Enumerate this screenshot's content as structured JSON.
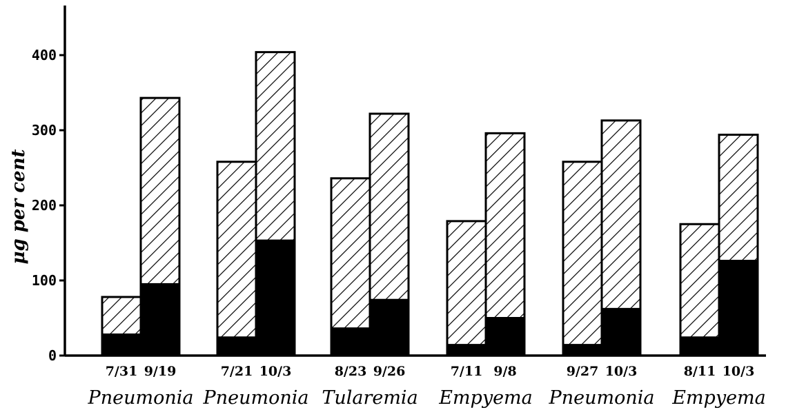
{
  "chart_data": {
    "type": "bar",
    "stacked": true,
    "ylabel": "μg per cent",
    "xlabel": "",
    "ylim": [
      0,
      460
    ],
    "yticks": [
      0,
      100,
      200,
      300,
      400
    ],
    "grid": false,
    "colors": {
      "lower": "#000000",
      "upper": "hatched"
    },
    "groups": [
      {
        "label": "Pneumonia",
        "bars": [
          {
            "date": "7/31",
            "lower": 28,
            "total": 78
          },
          {
            "date": "9/19",
            "lower": 95,
            "total": 343
          }
        ]
      },
      {
        "label": "Pneumonia",
        "bars": [
          {
            "date": "7/21",
            "lower": 24,
            "total": 258
          },
          {
            "date": "10/3",
            "lower": 153,
            "total": 404
          }
        ]
      },
      {
        "label": "Tularemia",
        "bars": [
          {
            "date": "8/23",
            "lower": 36,
            "total": 236
          },
          {
            "date": "9/26",
            "lower": 74,
            "total": 322
          }
        ]
      },
      {
        "label": "Empyema",
        "bars": [
          {
            "date": "7/11",
            "lower": 14,
            "total": 179
          },
          {
            "date": "9/8",
            "lower": 50,
            "total": 296
          }
        ]
      },
      {
        "label": "Pneumonia",
        "bars": [
          {
            "date": "9/27",
            "lower": 14,
            "total": 258
          },
          {
            "date": "10/3",
            "lower": 62,
            "total": 313
          }
        ]
      },
      {
        "label": "Empyema",
        "bars": [
          {
            "date": "8/11",
            "lower": 24,
            "total": 175
          },
          {
            "date": "10/3",
            "lower": 126,
            "total": 294
          }
        ]
      }
    ]
  }
}
